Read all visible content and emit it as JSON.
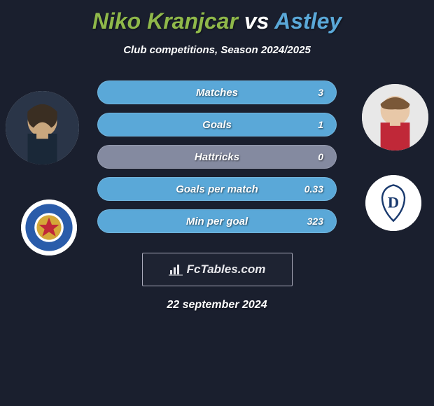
{
  "title": {
    "player1": "Niko Kranjcar",
    "player1_color": "#8fb84a",
    "vs": "vs",
    "vs_color": "#ffffff",
    "player2": "Astley",
    "player2_color": "#5aa8d8",
    "fontsize": 32
  },
  "subtitle": "Club competitions, Season 2024/2025",
  "subtitle_fontsize": 15,
  "background_color": "#1a1f2e",
  "stats": {
    "left_color": "#8fb84a",
    "right_color": "#5aa8d8",
    "neutral_color": "#848aa0",
    "pill_height": 34,
    "pill_radius": 17,
    "label_fontsize": 15,
    "value_fontsize": 14,
    "rows": [
      {
        "label": "Matches",
        "left": "",
        "right": "3",
        "fill": "right_full"
      },
      {
        "label": "Goals",
        "left": "",
        "right": "1",
        "fill": "right_full"
      },
      {
        "label": "Hattricks",
        "left": "",
        "right": "0",
        "fill": "neutral"
      },
      {
        "label": "Goals per match",
        "left": "",
        "right": "0.33",
        "fill": "right_full"
      },
      {
        "label": "Min per goal",
        "left": "",
        "right": "323",
        "fill": "right_full"
      }
    ]
  },
  "avatars": {
    "player1_bg": "#c9b89a",
    "player2_bg": "#e8d8c8",
    "club1_bg": "#ffffff",
    "club1_accent": "#2a5caa",
    "club2_bg": "#ffffff",
    "club2_accent": "#1a3a6e"
  },
  "branding": {
    "text": "FcTables.com",
    "icon_name": "bar-chart-icon",
    "border_color": "#aab",
    "fontsize": 17
  },
  "date": "22 september 2024",
  "date_fontsize": 16
}
